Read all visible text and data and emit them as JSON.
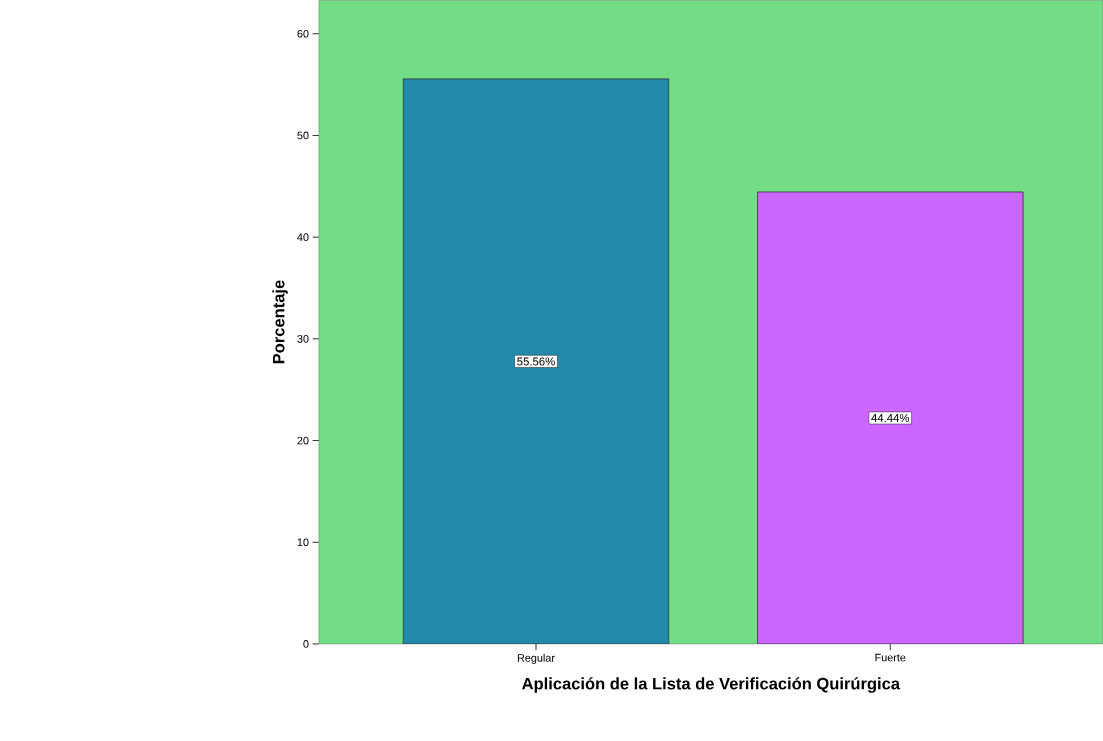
{
  "chart_data": {
    "type": "bar",
    "xlabel": "Aplicación de la Lista de Verificación Quirúrgica",
    "ylabel": "Porcentaje",
    "categories": [
      "Regular",
      "Fuerte"
    ],
    "values": [
      55.56,
      44.44
    ],
    "colors": [
      "#2389ab",
      "#cc66ff"
    ],
    "value_labels": [
      "55.56%",
      "44.44%"
    ],
    "ylim": [
      0,
      63.3
    ],
    "yticks": [
      0,
      10,
      20,
      30,
      40,
      50,
      60
    ]
  }
}
